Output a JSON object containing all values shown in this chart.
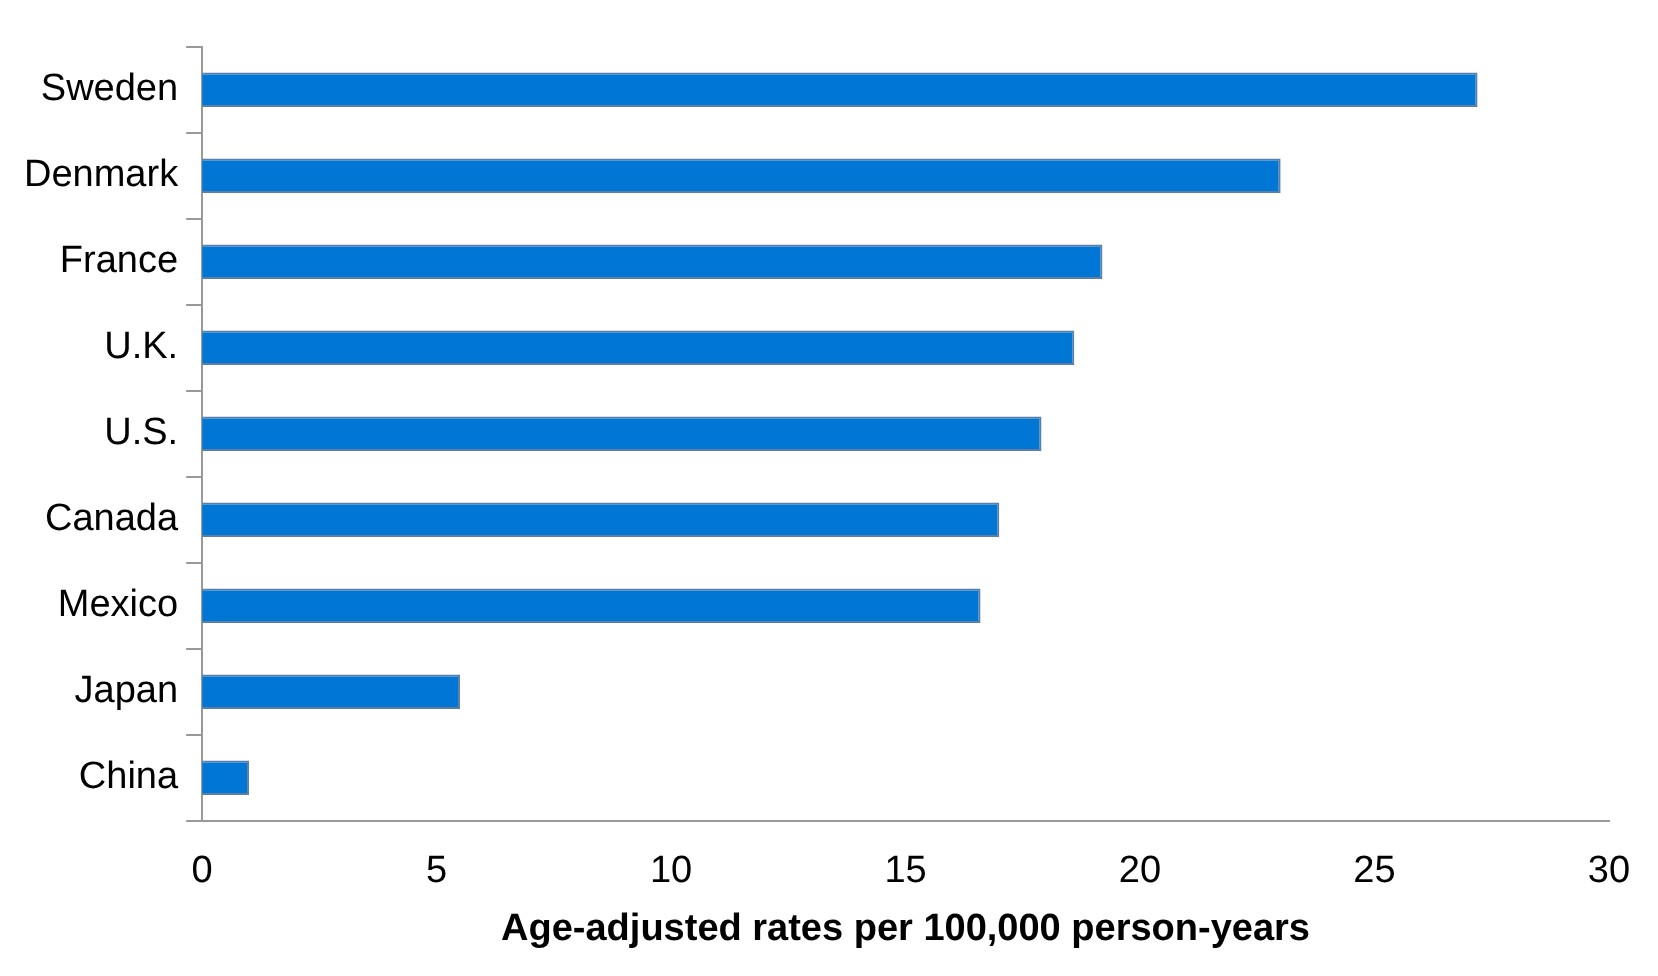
{
  "chart_data": {
    "type": "bar",
    "orientation": "horizontal",
    "xlabel": "Age-adjusted rates per 100,000 person-years",
    "categories": [
      "Sweden",
      "Denmark",
      "France",
      "U.K.",
      "U.S.",
      "Canada",
      "Mexico",
      "Japan",
      "China"
    ],
    "values": [
      27.2,
      23.0,
      19.2,
      18.6,
      17.9,
      17.0,
      16.6,
      5.5,
      1.0
    ],
    "color": "#0077d4",
    "xlim": [
      0,
      30
    ],
    "xticks": [
      0,
      5,
      10,
      15,
      20,
      25,
      30
    ],
    "grid": false,
    "legend": false
  }
}
